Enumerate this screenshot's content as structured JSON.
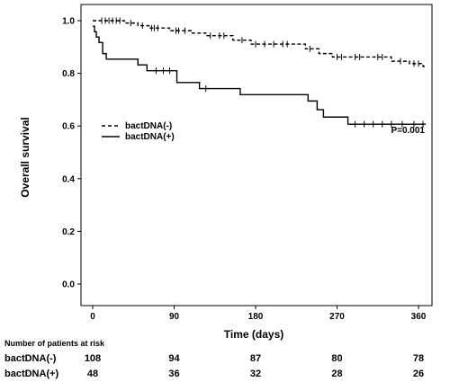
{
  "chart_data": {
    "type": "line",
    "ylabel": "Overall survival",
    "xlabel": "Time (days)",
    "xlim": [
      0,
      370
    ],
    "ylim": [
      0,
      1.0
    ],
    "xticks": [
      "0",
      "90",
      "180",
      "270",
      "360"
    ],
    "yticks": [
      "0.0",
      "0.2",
      "0.4",
      "0.6",
      "0.8",
      "1.0"
    ],
    "annotation": "P=0.001",
    "legend_position": "middle-left",
    "series": [
      {
        "name": "bactDNA(-)",
        "line_style": "dashed",
        "steps": [
          [
            0,
            1.0
          ],
          [
            35,
            0.991
          ],
          [
            50,
            0.981
          ],
          [
            62,
            0.972
          ],
          [
            85,
            0.962
          ],
          [
            110,
            0.953
          ],
          [
            125,
            0.943
          ],
          [
            155,
            0.926
          ],
          [
            175,
            0.911
          ],
          [
            235,
            0.893
          ],
          [
            250,
            0.875
          ],
          [
            265,
            0.862
          ],
          [
            330,
            0.846
          ],
          [
            350,
            0.837
          ],
          [
            365,
            0.826
          ]
        ],
        "censors": [
          [
            10,
            1.0
          ],
          [
            14,
            1.0
          ],
          [
            18,
            1.0
          ],
          [
            22,
            1.0
          ],
          [
            26,
            1.0
          ],
          [
            30,
            1.0
          ],
          [
            42,
            0.991
          ],
          [
            55,
            0.981
          ],
          [
            65,
            0.972
          ],
          [
            68,
            0.972
          ],
          [
            72,
            0.972
          ],
          [
            92,
            0.962
          ],
          [
            95,
            0.962
          ],
          [
            102,
            0.962
          ],
          [
            130,
            0.943
          ],
          [
            140,
            0.943
          ],
          [
            145,
            0.943
          ],
          [
            165,
            0.926
          ],
          [
            180,
            0.911
          ],
          [
            190,
            0.911
          ],
          [
            200,
            0.911
          ],
          [
            210,
            0.911
          ],
          [
            215,
            0.911
          ],
          [
            240,
            0.893
          ],
          [
            270,
            0.862
          ],
          [
            275,
            0.862
          ],
          [
            290,
            0.862
          ],
          [
            295,
            0.862
          ],
          [
            315,
            0.862
          ],
          [
            320,
            0.862
          ],
          [
            340,
            0.846
          ],
          [
            355,
            0.837
          ],
          [
            360,
            0.837
          ]
        ]
      },
      {
        "name": "bactDNA(+)",
        "line_style": "solid",
        "steps": [
          [
            0,
            0.979
          ],
          [
            2,
            0.958
          ],
          [
            4,
            0.938
          ],
          [
            7,
            0.917
          ],
          [
            11,
            0.875
          ],
          [
            15,
            0.854
          ],
          [
            50,
            0.832
          ],
          [
            60,
            0.81
          ],
          [
            93,
            0.765
          ],
          [
            118,
            0.742
          ],
          [
            163,
            0.719
          ],
          [
            238,
            0.695
          ],
          [
            248,
            0.662
          ],
          [
            255,
            0.634
          ],
          [
            282,
            0.607
          ]
        ],
        "censors": [
          [
            70,
            0.81
          ],
          [
            78,
            0.81
          ],
          [
            85,
            0.81
          ],
          [
            125,
            0.742
          ],
          [
            290,
            0.607
          ],
          [
            300,
            0.607
          ],
          [
            310,
            0.607
          ],
          [
            320,
            0.607
          ],
          [
            330,
            0.607
          ],
          [
            342,
            0.607
          ],
          [
            355,
            0.607
          ],
          [
            365,
            0.607
          ]
        ]
      }
    ],
    "risk_table": {
      "title": "Number of patients at risk",
      "time_points": [
        0,
        90,
        180,
        270,
        360
      ],
      "rows": [
        {
          "label": "bactDNA(-)",
          "values": [
            "108",
            "94",
            "87",
            "80",
            "78"
          ]
        },
        {
          "label": "bactDNA(+)",
          "values": [
            "48",
            "36",
            "32",
            "28",
            "26"
          ]
        }
      ]
    }
  }
}
